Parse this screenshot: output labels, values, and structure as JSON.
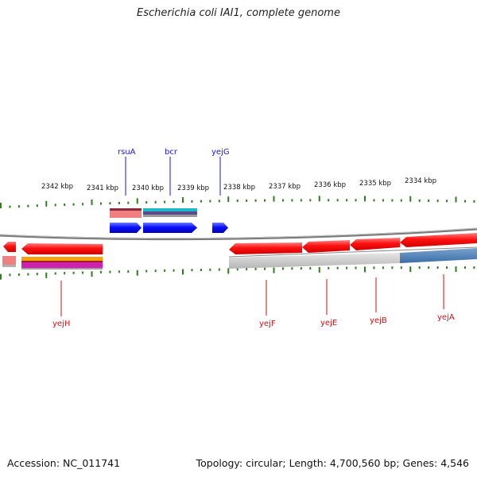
{
  "title": "Escherichia coli IAI1, complete genome",
  "footer": {
    "accession": "Accession: NC_011741",
    "summary": "Topology: circular; Length: 4,700,560 bp; Genes: 4,546"
  },
  "ruler": {
    "unit_suffix": "kbp",
    "labels": [
      "2342 kbp",
      "2341 kbp",
      "2340 kbp",
      "2339 kbp",
      "2338 kbp",
      "2337 kbp",
      "2336 kbp",
      "2335 kbp",
      "2334 kbp"
    ]
  },
  "genes_top": [
    "rsuA",
    "bcr",
    "yejG"
  ],
  "genes_bottom": [
    "yejH",
    "yejF",
    "yejE",
    "yejB",
    "yejA"
  ],
  "colors": {
    "top_label": "#1a1acc",
    "bottom_label": "#cc1111",
    "forward_gene": "#0a1aff",
    "reverse_gene": "#ff1a1a",
    "tick": "#2e7d1e",
    "backbone": "#808080"
  }
}
